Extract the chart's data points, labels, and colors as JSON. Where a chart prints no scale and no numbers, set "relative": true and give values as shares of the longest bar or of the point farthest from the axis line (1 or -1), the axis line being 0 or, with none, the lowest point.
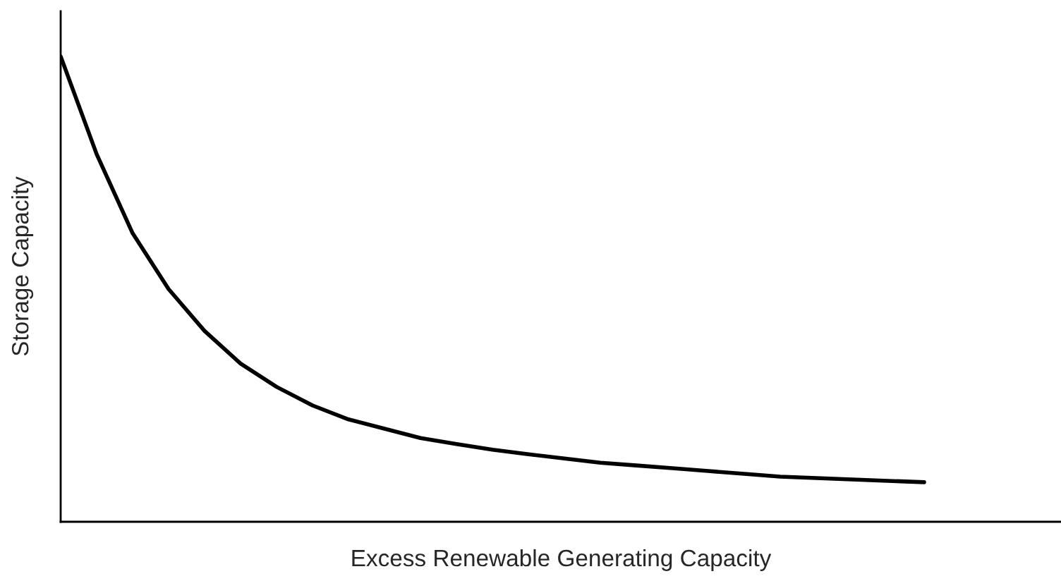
{
  "chart_data": {
    "type": "line",
    "relative": true,
    "xlabel": "Excess Renewable Generating Capacity",
    "ylabel": "Storage Capacity",
    "categories": [
      null,
      null,
      null,
      null,
      null,
      null,
      null,
      null,
      null,
      null,
      null,
      null,
      null,
      null,
      null,
      null,
      null,
      null,
      null,
      null,
      null,
      null,
      null,
      null,
      null
    ],
    "series": [
      {
        "color": "#000000",
        "values": [
          1.0,
          0.79,
          0.62,
          0.5,
          0.41,
          0.34,
          0.29,
          0.25,
          0.22,
          0.2,
          0.18,
          0.167,
          0.155,
          0.145,
          0.136,
          0.127,
          0.121,
          0.115,
          0.109,
          0.103,
          0.097,
          0.094,
          0.091,
          0.088,
          0.085
        ]
      }
    ],
    "legend": false,
    "marker": "none",
    "line_style": "solid"
  }
}
